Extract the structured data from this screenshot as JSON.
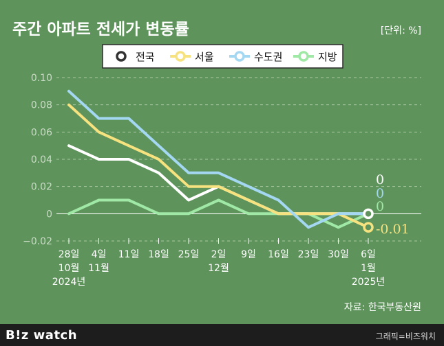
{
  "chart_data": {
    "type": "line",
    "title": "주간 아파트 전세가 변동률",
    "unit_label": "[단위: %]",
    "source": "자료: 한국부동산원",
    "ylim": [
      -0.02,
      0.1
    ],
    "yticks": [
      "0.10",
      "0.08",
      "0.06",
      "0.04",
      "0.02",
      "0",
      "−0.02"
    ],
    "categories": [
      [
        "28일",
        "10월",
        "2024년"
      ],
      [
        "4일",
        "11월"
      ],
      [
        "11일"
      ],
      [
        "18일"
      ],
      [
        "25일"
      ],
      [
        "2일",
        "12월"
      ],
      [
        "9일"
      ],
      [
        "16일"
      ],
      [
        "23일"
      ],
      [
        "30일"
      ],
      [
        "6일",
        "1월",
        "2025년"
      ]
    ],
    "grid": true,
    "legend_position": "top",
    "series": [
      {
        "name": "전국",
        "color": "#ffffff",
        "values": [
          0.05,
          0.04,
          0.04,
          0.03,
          0.01,
          0.02,
          0.01,
          0.0,
          0.0,
          0.0,
          0.0
        ],
        "end_label": "0"
      },
      {
        "name": "서울",
        "color": "#f6e27f",
        "values": [
          0.08,
          0.06,
          0.05,
          0.04,
          0.02,
          0.02,
          0.01,
          0.0,
          0.0,
          0.0,
          -0.01
        ],
        "end_label": "-0.01"
      },
      {
        "name": "수도권",
        "color": "#a4d8f2",
        "values": [
          0.09,
          0.07,
          0.07,
          0.05,
          0.03,
          0.03,
          0.02,
          0.01,
          -0.01,
          0.0,
          0.0
        ],
        "end_label": "0"
      },
      {
        "name": "지방",
        "color": "#9fe8a5",
        "values": [
          0.0,
          0.01,
          0.01,
          0.0,
          0.0,
          0.01,
          0.0,
          0.0,
          0.0,
          -0.01,
          0.0
        ],
        "end_label": "0"
      }
    ]
  },
  "footer": {
    "logo": "B!z watch",
    "credit": "그래픽=비즈워치"
  }
}
